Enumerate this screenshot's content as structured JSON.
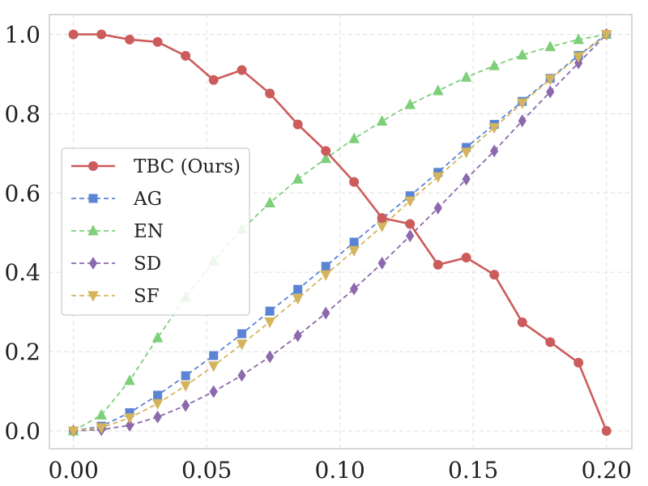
{
  "chart_data": {
    "type": "line",
    "title": "",
    "xlabel": "",
    "ylabel": "",
    "xlim": [
      -0.009,
      0.2095
    ],
    "ylim": [
      -0.045,
      1.05
    ],
    "x_ticks": [
      0.0,
      0.05,
      0.1,
      0.15,
      0.2
    ],
    "x_tick_labels": [
      "0.00",
      "0.05",
      "0.10",
      "0.15",
      "0.20"
    ],
    "y_ticks": [
      0.0,
      0.2,
      0.4,
      0.6,
      0.8,
      1.0
    ],
    "y_tick_labels": [
      "0.0",
      "0.2",
      "0.4",
      "0.6",
      "0.8",
      "1.0"
    ],
    "grid": true,
    "legend_position": "center-left",
    "x": [
      0.0,
      0.0105,
      0.0211,
      0.0316,
      0.0421,
      0.0526,
      0.0632,
      0.0737,
      0.0842,
      0.0947,
      0.1053,
      0.1158,
      0.1263,
      0.1368,
      0.1474,
      0.1579,
      0.1684,
      0.1789,
      0.1895,
      0.2
    ],
    "series": [
      {
        "name": "TBC (Ours)",
        "color": "#cc5c5c",
        "dash": "solid",
        "marker": "circle",
        "values": [
          1.0,
          1.0,
          0.987,
          0.981,
          0.946,
          0.885,
          0.91,
          0.851,
          0.773,
          0.706,
          0.628,
          0.537,
          0.522,
          0.419,
          0.437,
          0.394,
          0.274,
          0.224,
          0.172,
          0.0
        ]
      },
      {
        "name": "AG",
        "color": "#5b84d4",
        "dash": "dashed",
        "marker": "square",
        "values": [
          0.0,
          0.012,
          0.046,
          0.09,
          0.139,
          0.19,
          0.245,
          0.302,
          0.357,
          0.415,
          0.476,
          0.535,
          0.593,
          0.652,
          0.715,
          0.773,
          0.831,
          0.889,
          0.947,
          1.0
        ]
      },
      {
        "name": "EN",
        "color": "#7ecf7a",
        "dash": "dashed",
        "marker": "triangle-up",
        "values": [
          0.0,
          0.04,
          0.127,
          0.235,
          0.337,
          0.428,
          0.508,
          0.575,
          0.635,
          0.687,
          0.737,
          0.781,
          0.823,
          0.858,
          0.892,
          0.921,
          0.948,
          0.969,
          0.987,
          1.0
        ]
      },
      {
        "name": "SD",
        "color": "#8c68ac",
        "dash": "dashed",
        "marker": "diamond",
        "values": [
          0.0,
          0.003,
          0.014,
          0.035,
          0.064,
          0.099,
          0.14,
          0.187,
          0.24,
          0.297,
          0.358,
          0.423,
          0.492,
          0.562,
          0.635,
          0.706,
          0.782,
          0.855,
          0.928,
          1.0
        ]
      },
      {
        "name": "SF",
        "color": "#d4b45c",
        "dash": "dashed",
        "marker": "triangle-down",
        "values": [
          0.0,
          0.008,
          0.033,
          0.069,
          0.114,
          0.164,
          0.219,
          0.275,
          0.334,
          0.394,
          0.455,
          0.516,
          0.58,
          0.641,
          0.703,
          0.765,
          0.827,
          0.887,
          0.944,
          1.0
        ]
      }
    ]
  }
}
